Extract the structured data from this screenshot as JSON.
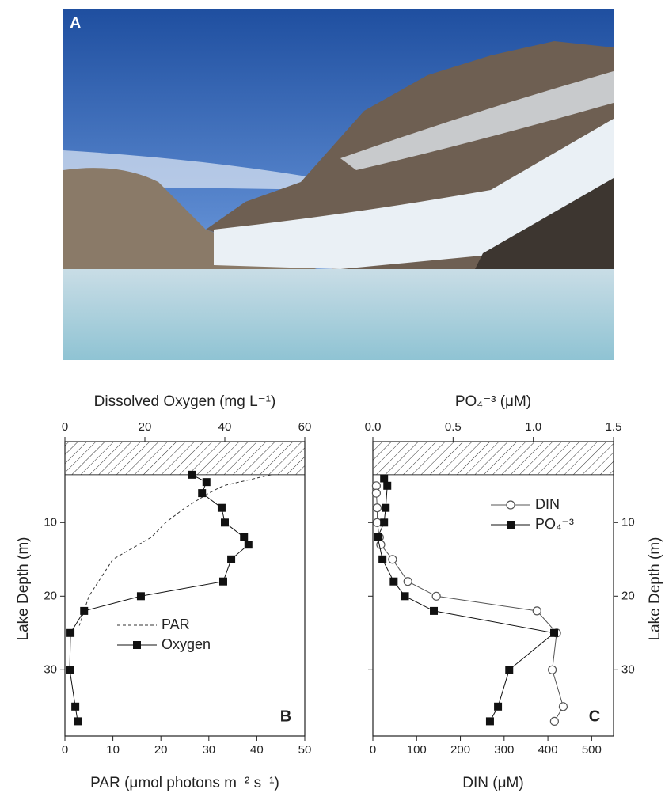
{
  "photo": {
    "label": "A"
  },
  "chart_data": [
    {
      "type": "line",
      "panel_label": "B",
      "x2label": "Dissolved Oxygen (mg L⁻¹)",
      "xlabel": "PAR (μmol photons m⁻² s⁻¹)",
      "ylabel": "Lake Depth (m)",
      "xlim": [
        0,
        50
      ],
      "xticks": [
        0,
        10,
        20,
        30,
        40,
        50
      ],
      "x2lim": [
        0,
        60
      ],
      "x2ticks": [
        0,
        20,
        40,
        60
      ],
      "ylim": [
        -1,
        39
      ],
      "yticks": [
        10,
        20,
        30
      ],
      "hatch_to": 3.5,
      "series": [
        {
          "name": "PAR",
          "color": "#333333",
          "style": "dashed",
          "marker": "none",
          "axis": "x",
          "depth": [
            3.5,
            5,
            6,
            8,
            10,
            12,
            15,
            18,
            20,
            22,
            24
          ],
          "values": [
            43,
            33,
            30,
            25,
            21,
            18,
            10,
            7,
            5,
            4,
            3
          ]
        },
        {
          "name": "Oxygen",
          "color": "#111111",
          "style": "solid",
          "marker": "square",
          "axis": "x2",
          "depth": [
            3.5,
            4.5,
            6,
            8,
            10,
            12,
            13,
            15,
            18,
            20,
            22,
            25,
            30,
            35,
            37
          ],
          "values": [
            31.7,
            35.4,
            34.3,
            39.2,
            40,
            44.8,
            45.9,
            41.6,
            39.6,
            19,
            4.8,
            1.4,
            1.2,
            2.6,
            3.2
          ]
        }
      ]
    },
    {
      "type": "line",
      "panel_label": "C",
      "x2label": "PO₄⁻³ (μM)",
      "xlabel": "DIN (μM)",
      "ylabel": "Lake Depth (m)",
      "xlim": [
        0,
        550
      ],
      "xticks": [
        0,
        100,
        200,
        300,
        400,
        500
      ],
      "x2lim": [
        0,
        1.5
      ],
      "x2ticks": [
        {
          "value": 0,
          "label": "0.0"
        },
        0.5,
        {
          "value": 1,
          "label": "1.0"
        },
        1.5
      ],
      "ylim": [
        -1,
        39
      ],
      "yticks": [
        10,
        20,
        30
      ],
      "hatch_to": 3.5,
      "series": [
        {
          "name": "DIN",
          "color": "#555555",
          "style": "solid",
          "marker": "circle",
          "axis": "x",
          "depth": [
            5,
            6,
            8,
            10,
            12,
            13,
            15,
            18,
            20,
            22,
            25,
            30,
            35,
            37
          ],
          "values": [
            8,
            8,
            10,
            10,
            15,
            18,
            45,
            80,
            145,
            375,
            420,
            410,
            435,
            415
          ]
        },
        {
          "name": "PO₄⁻³",
          "color": "#111111",
          "style": "solid",
          "marker": "square",
          "axis": "x2",
          "depth": [
            4,
            5,
            8,
            10,
            12,
            15,
            18,
            20,
            22,
            25,
            30,
            35,
            37
          ],
          "values": [
            0.07,
            0.09,
            0.08,
            0.07,
            0.03,
            0.06,
            0.13,
            0.2,
            0.38,
            1.13,
            0.85,
            0.78,
            0.73
          ]
        }
      ]
    }
  ]
}
